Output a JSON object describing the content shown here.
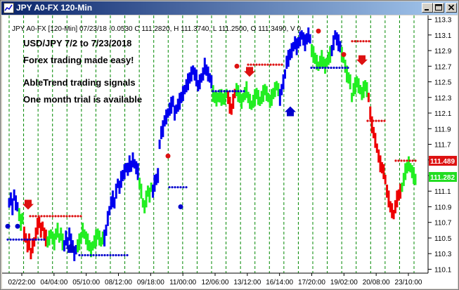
{
  "window": {
    "title": "JPY A0-FX 120-Min",
    "controls": [
      "minimize-icon",
      "maximize-icon",
      "close-icon"
    ]
  },
  "chart_data": {
    "type": "candlestick",
    "header": "JPY A0-FX [120-Min] 07/23/18  -0.0530 C 111.2820, H 111.3740, L 111.2500, O 111.3490, V 0",
    "annotations": [
      "USD/JPY 7/2 to 7/23/2018",
      "Forex trading made easy!",
      "AbleTrend trading signals",
      "One month trial is available"
    ],
    "y_axis": {
      "side": "right",
      "ylim": [
        110.05,
        113.35
      ],
      "ticks": [
        113.3,
        113.1,
        112.9,
        112.7,
        112.5,
        112.3,
        112.1,
        111.9,
        111.7,
        111.5,
        111.3,
        111.1,
        110.9,
        110.7,
        110.5,
        110.3,
        110.1
      ]
    },
    "x_axis": {
      "ticks": [
        "02/22:00",
        "04/04:00",
        "05/10:00",
        "08/12:00",
        "09/18:00",
        "11/00:00",
        "12/06:00",
        "13/12:00",
        "16/14:00",
        "17/20:00",
        "19/02:00",
        "20/08:00",
        "23/10:00"
      ]
    },
    "price_labels": [
      {
        "value": 111.489,
        "text": "111.489",
        "color": "#dd1111"
      },
      {
        "value": 111.282,
        "text": "111.282",
        "color": "#22dd22"
      }
    ],
    "grid": "vertical-dashed-green",
    "colors": {
      "up_trend": "#0000ee",
      "down_trend": "#ee0000",
      "side_trend": "#22ee22",
      "grid": "#008800",
      "background": "#ffffff"
    },
    "segments": [
      {
        "trend": "blue",
        "values": [
          110.95,
          111.0,
          110.9,
          111.05,
          110.95,
          110.9
        ]
      },
      {
        "trend": "green",
        "values": [
          110.8,
          110.7,
          110.75
        ]
      },
      {
        "trend": "red",
        "values": [
          110.55,
          110.5,
          110.4,
          110.45,
          110.3,
          110.4,
          110.45,
          110.55,
          110.65,
          110.7,
          110.6,
          110.65,
          110.55,
          110.5
        ]
      },
      {
        "trend": "green",
        "values": [
          110.45,
          110.5,
          110.55,
          110.5,
          110.45,
          110.55,
          110.6,
          110.5,
          110.55,
          110.45
        ]
      },
      {
        "trend": "blue",
        "values": [
          110.4,
          110.5,
          110.45,
          110.55,
          110.45,
          110.4,
          110.3,
          110.35
        ]
      },
      {
        "trend": "green",
        "values": [
          110.4,
          110.45,
          110.5,
          110.6,
          110.55,
          110.5,
          110.45,
          110.4,
          110.35,
          110.4,
          110.45,
          110.5,
          110.55,
          110.5,
          110.45,
          110.5
        ]
      },
      {
        "trend": "blue",
        "values": [
          110.5,
          110.6,
          110.75,
          110.85,
          110.95,
          111.0,
          110.95,
          111.1,
          111.2,
          111.15,
          111.25,
          111.3,
          111.35,
          111.4,
          111.38,
          111.45,
          111.42,
          111.5,
          111.45,
          111.4,
          111.35
        ]
      },
      {
        "trend": "green",
        "values": [
          111.2,
          111.1,
          110.95,
          110.9,
          111.0,
          111.1,
          111.05,
          111.15
        ]
      },
      {
        "trend": "blue",
        "values": [
          111.1,
          111.2,
          111.25,
          111.3,
          111.7,
          111.85,
          111.9,
          112.0,
          112.05,
          112.1,
          112.15,
          112.2,
          112.25,
          112.1,
          112.15,
          112.2,
          112.25,
          112.3,
          112.35,
          112.4,
          112.45,
          112.5,
          112.55,
          112.6,
          112.65,
          112.6,
          112.55,
          112.45,
          112.5,
          112.55,
          112.6,
          112.7,
          112.65,
          112.6,
          112.55,
          112.5
        ]
      },
      {
        "trend": "green",
        "values": [
          112.35,
          112.3,
          112.28,
          112.3,
          112.32,
          112.3,
          112.28,
          112.3,
          112.35
        ]
      },
      {
        "trend": "red",
        "values": [
          112.3,
          112.2,
          112.15,
          112.25,
          112.35
        ]
      },
      {
        "trend": "green",
        "values": [
          112.4,
          112.35,
          112.3,
          112.25,
          112.3,
          112.35,
          112.4,
          112.3,
          112.25,
          112.2,
          112.25,
          112.3,
          112.35,
          112.3,
          112.25,
          112.3,
          112.35,
          112.4,
          112.35,
          112.3,
          112.25,
          112.3,
          112.35,
          112.4,
          112.45,
          112.4
        ]
      },
      {
        "trend": "blue",
        "values": [
          112.3,
          112.4,
          112.5,
          112.6,
          112.75,
          112.8,
          112.85,
          112.9,
          112.95,
          113.0,
          112.95,
          113.0,
          113.05,
          113.1,
          113.05,
          113.0,
          113.05,
          113.1,
          113.05
        ]
      },
      {
        "trend": "green",
        "values": [
          112.9,
          112.85,
          112.8,
          112.75,
          112.7,
          112.75,
          112.8,
          112.75,
          112.7,
          112.75,
          112.8,
          112.85
        ]
      },
      {
        "trend": "blue",
        "values": [
          112.9,
          113.0,
          113.1,
          113.05,
          113.0,
          112.95
        ]
      },
      {
        "trend": "green",
        "values": [
          112.85,
          112.8,
          112.7,
          112.6,
          112.55,
          112.5,
          112.3,
          112.4,
          112.45,
          112.5,
          112.45,
          112.4,
          112.35,
          112.4,
          112.45,
          112.4
        ]
      },
      {
        "trend": "red",
        "values": [
          112.3,
          112.1,
          111.95,
          111.85,
          111.75,
          111.65,
          111.55,
          111.45,
          111.4,
          111.35,
          111.25,
          111.1,
          111.0,
          110.9,
          110.85,
          110.8,
          110.9,
          111.0,
          111.05,
          111.1
        ]
      },
      {
        "trend": "green",
        "values": [
          111.15,
          111.25,
          111.35,
          111.4,
          111.45,
          111.4,
          111.35,
          111.3,
          111.25
        ]
      }
    ]
  }
}
